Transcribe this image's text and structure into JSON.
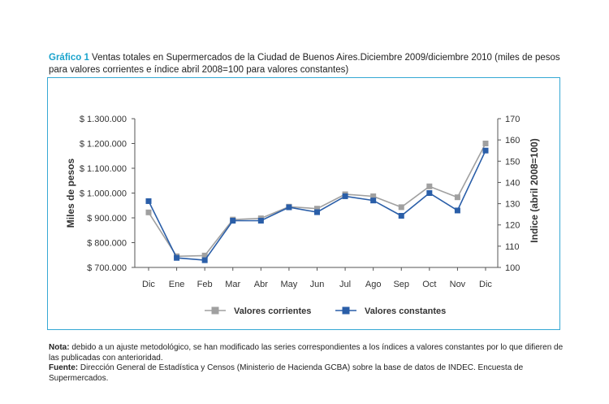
{
  "title": {
    "lead": "Gráfico 1",
    "text": " Ventas totales en Supermercados de la Ciudad de Buenos Aires.Diciembre 2009/diciembre 2010 (miles de pesos para valores corrientes e índice abril 2008=100 para valores constantes)"
  },
  "chart_data": {
    "type": "line",
    "categories": [
      "Dic",
      "Ene",
      "Feb",
      "Mar",
      "Abr",
      "May",
      "Jun",
      "Jul",
      "Ago",
      "Sep",
      "Oct",
      "Nov",
      "Dic"
    ],
    "y_left": {
      "label": "Miles de pesos",
      "range": [
        700000,
        1300000
      ],
      "ticks": [
        700000,
        800000,
        900000,
        1000000,
        1100000,
        1200000,
        1300000
      ],
      "tick_labels": [
        "$ 700.000",
        "$ 800.000",
        "$ 900.000",
        "$ 1.000.000",
        "$ 1.100.000",
        "$ 1.200.000",
        "$ 1.300.000"
      ]
    },
    "y_right": {
      "label": "Indice (abril 2008=100)",
      "range": [
        100,
        170
      ],
      "ticks": [
        100,
        110,
        120,
        130,
        140,
        150,
        160,
        170
      ],
      "tick_labels": [
        "100",
        "110",
        "120",
        "130",
        "140",
        "150",
        "160",
        "170"
      ]
    },
    "series": [
      {
        "name": "Valores corrientes",
        "axis": "left",
        "color": "#a0a0a0",
        "values": [
          922000,
          745000,
          748000,
          893000,
          898000,
          945000,
          937000,
          995000,
          987000,
          943000,
          1027000,
          983000,
          1200000
        ]
      },
      {
        "name": "Valores constantes",
        "axis": "right",
        "color": "#2a5ea8",
        "values": [
          131.2,
          104.5,
          103.4,
          122.0,
          122.0,
          128.3,
          126.0,
          133.5,
          131.5,
          124.3,
          135.0,
          126.8,
          155.0
        ]
      }
    ],
    "grid": false,
    "legend": "bottom"
  },
  "notes": {
    "nota_label": "Nota:",
    "nota_text": " debido a un ajuste metodológico, se han modificado las series correspondientes a los índices a valores constantes por lo que difieren de las publicadas con anterioridad.",
    "fuente_label": "Fuente:",
    "fuente_text": " Dirección General de Estadística y Censos (Ministerio de Hacienda GCBA) sobre la base de datos de INDEC. Encuesta de Supermercados."
  }
}
